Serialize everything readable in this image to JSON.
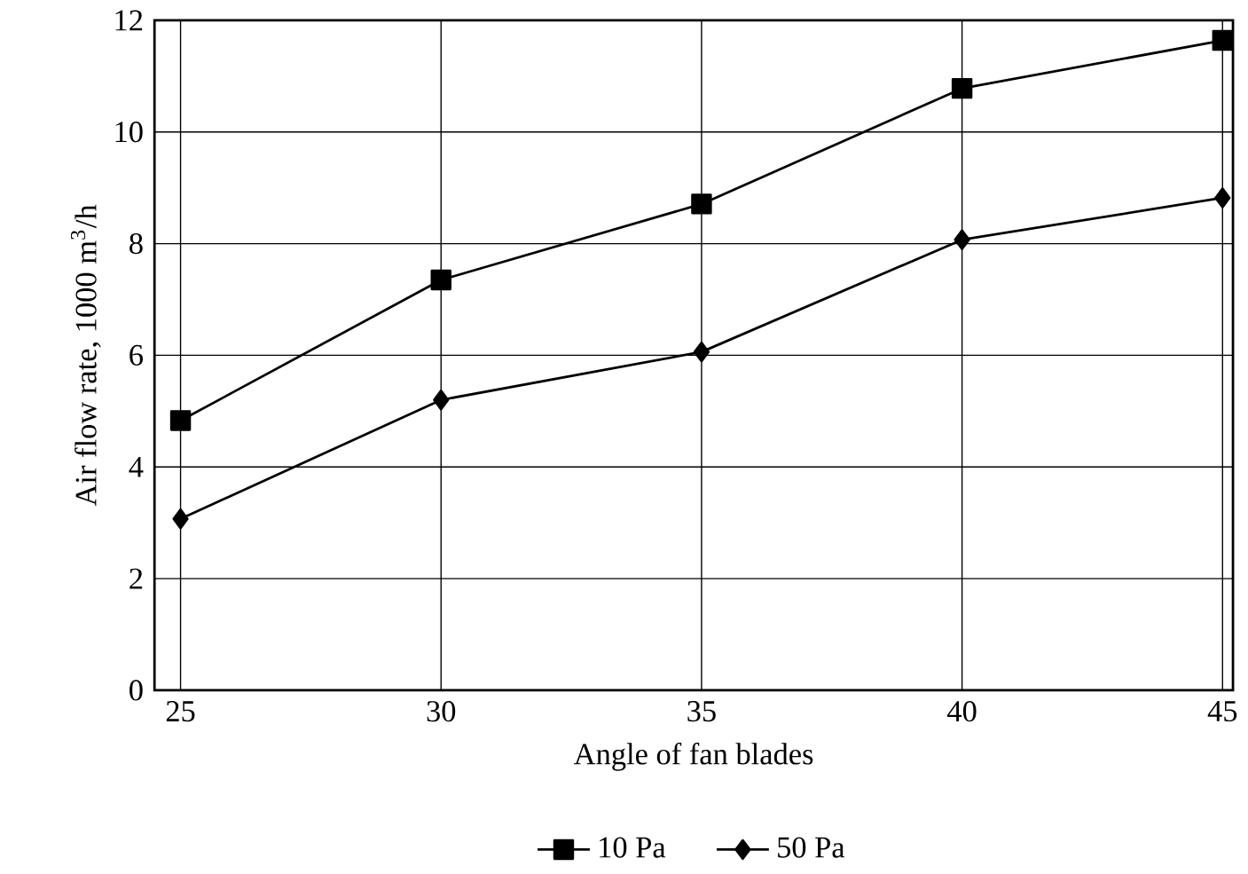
{
  "chart_data": {
    "type": "line",
    "xlabel": "Angle of fan blades",
    "ylabel": "Air flow rate, 1000 m$^{3}$/h",
    "x": [
      25,
      30,
      35,
      40,
      45
    ],
    "series": [
      {
        "name": "10 Pa",
        "color": "#000000",
        "marker": "square",
        "values": [
          4.83,
          7.35,
          8.71,
          10.78,
          11.64
        ]
      },
      {
        "name": "50 Pa",
        "color": "#000000",
        "marker": "diamond",
        "values": [
          3.07,
          5.2,
          6.06,
          8.07,
          8.82
        ]
      }
    ],
    "xlim": [
      24.5,
      45.2
    ],
    "ylim": [
      0,
      12
    ],
    "xticks": [
      25,
      30,
      35,
      40,
      45
    ],
    "yticks": [
      0,
      2,
      4,
      6,
      8,
      10,
      12
    ],
    "grid": true,
    "legend": "bottom",
    "line_style": "solid"
  }
}
